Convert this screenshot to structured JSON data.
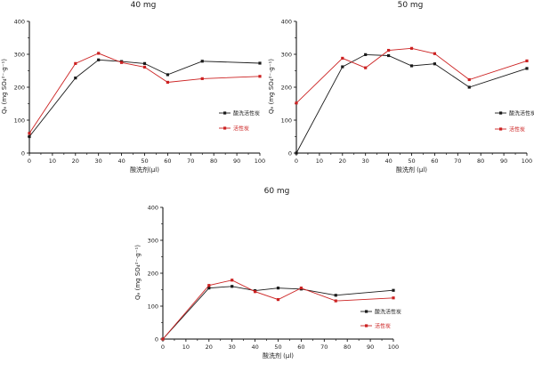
{
  "figure": {
    "background": "#ffffff",
    "axis_color": "#000000",
    "text_color": "#1a1a1a"
  },
  "chart_data": [
    {
      "type": "line",
      "title": "40 mg",
      "xlabel": "酸洗剂(μl)",
      "ylabel": "Qₑ (mg SO₄²⁻·g⁻¹)",
      "x": [
        0,
        20,
        30,
        40,
        50,
        60,
        75,
        100
      ],
      "xlim": [
        0,
        100
      ],
      "ylim": [
        0,
        400
      ],
      "xticks": [
        0,
        10,
        20,
        30,
        40,
        50,
        60,
        70,
        80,
        90,
        100
      ],
      "yticks": [
        0,
        100,
        200,
        300,
        400
      ],
      "grid": false,
      "legend_position": "inside-right",
      "legend": {
        "x": 246,
        "rows_y": [
          127,
          144
        ]
      },
      "series": [
        {
          "name": "酸洗活性炭",
          "color": "#1a1a1a",
          "marker": "square",
          "values": [
            50,
            228,
            283,
            278,
            272,
            238,
            279,
            273
          ]
        },
        {
          "name": "活性炭",
          "color": "#cc2222",
          "marker": "square",
          "values": [
            60,
            272,
            303,
            275,
            261,
            215,
            226,
            233
          ]
        }
      ]
    },
    {
      "type": "line",
      "title": "50 mg",
      "xlabel": "酸洗剂 (μl)",
      "ylabel": "Qₑ (mg SO₄²⁻·g⁻¹)",
      "x": [
        0,
        20,
        30,
        40,
        50,
        60,
        75,
        100
      ],
      "xlim": [
        0,
        100
      ],
      "ylim": [
        0,
        400
      ],
      "xticks": [
        0,
        10,
        20,
        30,
        40,
        50,
        60,
        70,
        80,
        90,
        100
      ],
      "yticks": [
        0,
        100,
        200,
        300,
        400
      ],
      "grid": false,
      "legend_position": "inside-right",
      "legend": {
        "x": 256,
        "rows_y": [
          127,
          145
        ]
      },
      "series": [
        {
          "name": "酸洗活性炭",
          "color": "#1a1a1a",
          "marker": "square",
          "values": [
            0,
            262,
            299,
            296,
            265,
            271,
            200,
            257
          ]
        },
        {
          "name": "活性炭",
          "color": "#cc2222",
          "marker": "square",
          "values": [
            152,
            288,
            259,
            312,
            318,
            302,
            223,
            280
          ]
        }
      ]
    },
    {
      "type": "line",
      "title": "60 mg",
      "xlabel": "酸洗剂 (μl)",
      "ylabel": "Qₑ (mg SO₄²⁻·g⁻¹)",
      "x": [
        0,
        20,
        30,
        40,
        50,
        60,
        75,
        100
      ],
      "xlim": [
        0,
        100
      ],
      "ylim": [
        0,
        400
      ],
      "xticks": [
        0,
        10,
        20,
        30,
        40,
        50,
        60,
        70,
        80,
        90,
        100
      ],
      "yticks": [
        0,
        100,
        200,
        300,
        400
      ],
      "grid": false,
      "legend_position": "inside-right",
      "legend": {
        "x": 255,
        "rows_y": [
          141,
          157
        ]
      },
      "series": [
        {
          "name": "酸洗活性炭",
          "color": "#1a1a1a",
          "marker": "square",
          "values": [
            0,
            155,
            160,
            147,
            155,
            152,
            133,
            148
          ]
        },
        {
          "name": "活性炭",
          "color": "#cc2222",
          "marker": "square",
          "values": [
            0,
            163,
            179,
            144,
            120,
            155,
            116,
            125
          ]
        }
      ]
    }
  ]
}
